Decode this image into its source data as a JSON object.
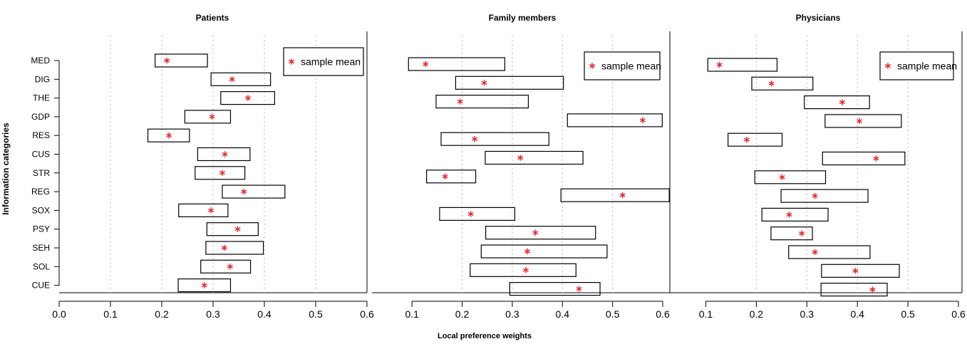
{
  "ylabel": "Information categories",
  "xlabel": "Local preference weights",
  "legend_label": "sample mean",
  "colors": {
    "mean": "#e8202a",
    "box": "#000000",
    "grid": "#b8b8b8"
  },
  "chart_data": [
    {
      "type": "interval",
      "title": "Patients",
      "xlim": [
        0,
        0.6
      ],
      "xticks": [
        "0.0",
        "0.1",
        "0.2",
        "0.3",
        "0.4",
        "0.5",
        "0.6"
      ],
      "xtick_values": [
        0,
        0.1,
        0.2,
        0.3,
        0.4,
        0.5,
        0.6
      ],
      "categories": [
        "MED",
        "DIG",
        "THE",
        "GDP",
        "RES",
        "CUS",
        "STR",
        "REG",
        "SOX",
        "PSY",
        "SEH",
        "SOL",
        "CUE"
      ],
      "low": [
        0.187,
        0.296,
        0.315,
        0.245,
        0.173,
        0.27,
        0.265,
        0.318,
        0.233,
        0.288,
        0.286,
        0.276,
        0.232
      ],
      "high": [
        0.289,
        0.412,
        0.42,
        0.334,
        0.254,
        0.372,
        0.362,
        0.44,
        0.329,
        0.388,
        0.398,
        0.373,
        0.334
      ],
      "mean": [
        0.21,
        0.337,
        0.368,
        0.298,
        0.214,
        0.323,
        0.318,
        0.36,
        0.296,
        0.348,
        0.322,
        0.333,
        0.283
      ],
      "legend": "top-right",
      "grid": true
    },
    {
      "type": "interval",
      "title": "Family members",
      "xlim": [
        0.05,
        0.6
      ],
      "xticks": [
        "0.1",
        "0.2",
        "0.3",
        "0.4",
        "0.5",
        "0.6"
      ],
      "xtick_values": [
        0.1,
        0.2,
        0.3,
        0.4,
        0.5,
        0.6
      ],
      "categories": [
        "MED",
        "DIG",
        "THE",
        "GDP",
        "RES",
        "CUS",
        "STR",
        "REG",
        "SOX",
        "PSY",
        "SEH",
        "SOL",
        "CUE"
      ],
      "low": [
        0.093,
        0.187,
        0.148,
        0.41,
        0.158,
        0.246,
        0.129,
        0.397,
        0.155,
        0.247,
        0.238,
        0.216,
        0.295
      ],
      "high": [
        0.285,
        0.402,
        0.332,
        0.599,
        0.373,
        0.441,
        0.227,
        0.613,
        0.305,
        0.466,
        0.489,
        0.427,
        0.475
      ],
      "mean": [
        0.127,
        0.244,
        0.196,
        0.56,
        0.225,
        0.316,
        0.166,
        0.52,
        0.217,
        0.346,
        0.33,
        0.327,
        0.433
      ],
      "legend": "top-right",
      "grid": true
    },
    {
      "type": "interval",
      "title": "Physicians",
      "xlim": [
        0.05,
        0.6
      ],
      "xticks": [
        "0.1",
        "0.2",
        "0.3",
        "0.4",
        "0.5",
        "0.6"
      ],
      "xtick_values": [
        0.1,
        0.2,
        0.3,
        0.4,
        0.5,
        0.6
      ],
      "categories": [
        "MED",
        "DIG",
        "THE",
        "GDP",
        "RES",
        "CUS",
        "STR",
        "REG",
        "SOX",
        "PSY",
        "SEH",
        "SOL",
        "CUE"
      ],
      "low": [
        0.104,
        0.191,
        0.295,
        0.336,
        0.144,
        0.331,
        0.197,
        0.249,
        0.211,
        0.229,
        0.264,
        0.329,
        0.328
      ],
      "high": [
        0.241,
        0.312,
        0.424,
        0.487,
        0.251,
        0.494,
        0.337,
        0.421,
        0.342,
        0.311,
        0.425,
        0.483,
        0.459
      ],
      "mean": [
        0.127,
        0.23,
        0.37,
        0.404,
        0.181,
        0.437,
        0.251,
        0.316,
        0.265,
        0.29,
        0.316,
        0.396,
        0.43
      ],
      "legend": "top-right",
      "grid": true
    }
  ]
}
